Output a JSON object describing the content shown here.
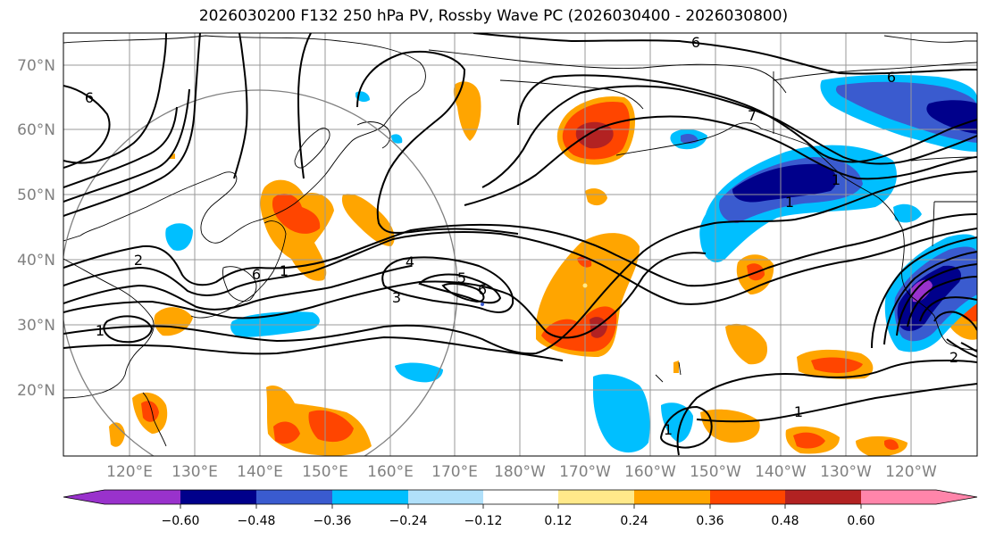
{
  "title": "2026030200 F132 250 hPa PV, Rossby Wave PC (2026030400 - 2026030800)",
  "lat_labels": [
    "70°N",
    "60°N",
    "50°N",
    "40°N",
    "30°N",
    "20°N"
  ],
  "lon_labels": [
    "120°E",
    "130°E",
    "140°E",
    "150°E",
    "160°E",
    "170°E",
    "180°W",
    "170°W",
    "160°W",
    "150°W",
    "140°W",
    "130°W",
    "120°W"
  ],
  "colorbar": {
    "colors": [
      "#9932cc",
      "#00008b",
      "#3a5bcf",
      "#00bfff",
      "#b0e0fa",
      "#ffffff",
      "#ffe98a",
      "#ffa500",
      "#ff4500",
      "#b22222",
      "#ff85aa"
    ],
    "tick_labels": [
      "−0.60",
      "−0.48",
      "−0.36",
      "−0.24",
      "−0.12",
      "0.12",
      "0.24",
      "0.36",
      "0.48",
      "0.60"
    ]
  },
  "contour_labels": [
    "6",
    "6",
    "6",
    "7",
    "1",
    "4",
    "5",
    "6",
    "3",
    "1",
    "2",
    "1",
    "1",
    "1",
    "2",
    "6",
    "1"
  ],
  "colors": {
    "contour": "#000000",
    "grid": "#999999",
    "circle": "#808080",
    "axis_text": "#808080"
  }
}
